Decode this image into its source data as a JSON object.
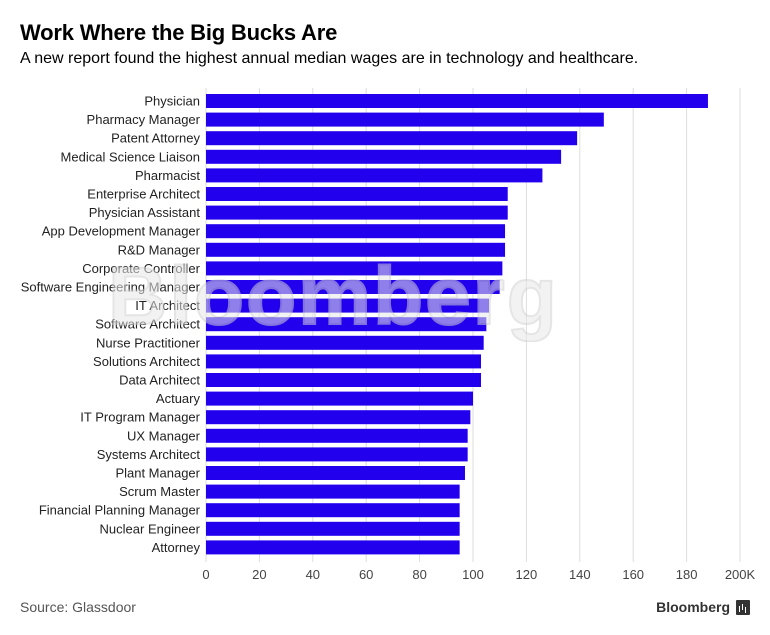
{
  "header": {
    "title": "Work Where the Big Bucks Are",
    "subtitle": "A new report found the highest annual median wages are in technology and healthcare."
  },
  "footer": {
    "source": "Source: Glassdoor",
    "brand": "Bloomberg"
  },
  "watermark": "Bloomberg",
  "colors": {
    "bar": "#2200ee",
    "grid": "#dddddd"
  },
  "chart_data": {
    "type": "bar",
    "orientation": "horizontal",
    "title": "Work Where the Big Bucks Are",
    "subtitle": "A new report found the highest annual median wages are in technology and healthcare.",
    "xlabel": "",
    "ylabel": "",
    "xlim": [
      0,
      200
    ],
    "x_ticks": [
      0,
      20,
      40,
      60,
      80,
      100,
      120,
      140,
      160,
      180,
      200
    ],
    "x_tick_labels": [
      "0",
      "20",
      "40",
      "60",
      "80",
      "100",
      "120",
      "140",
      "160",
      "180",
      "200K"
    ],
    "grid": true,
    "categories": [
      "Physician",
      "Pharmacy Manager",
      "Patent Attorney",
      "Medical Science Liaison",
      "Pharmacist",
      "Enterprise Architect",
      "Physician Assistant",
      "App Development Manager",
      "R&D Manager",
      "Corporate Controller",
      "Software Engineering Manager",
      "IT Architect",
      "Software Architect",
      "Nurse Practitioner",
      "Solutions Architect",
      "Data Architect",
      "Actuary",
      "IT Program Manager",
      "UX Manager",
      "Systems Architect",
      "Plant Manager",
      "Scrum Master",
      "Financial Planning Manager",
      "Nuclear Engineer",
      "Attorney"
    ],
    "values": [
      188,
      149,
      139,
      133,
      126,
      113,
      113,
      112,
      112,
      111,
      110,
      106,
      105,
      104,
      103,
      103,
      100,
      99,
      98,
      98,
      97,
      95,
      95,
      95,
      95
    ]
  }
}
